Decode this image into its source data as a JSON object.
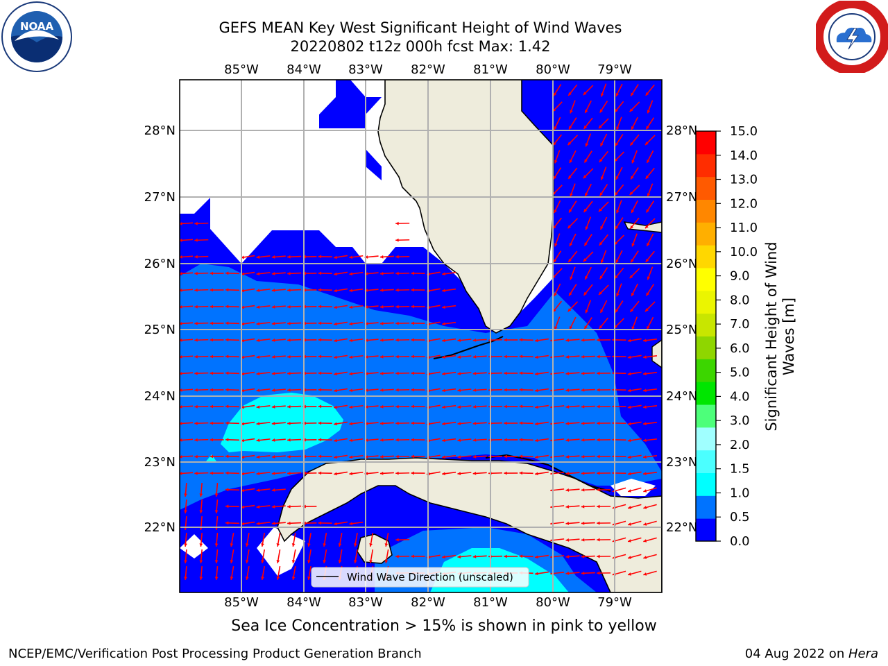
{
  "title": {
    "line1": "GEFS MEAN Key West Significant Height of Wind Waves",
    "line2": "20220802 t12z 000h fcst   Max: 1.42"
  },
  "map": {
    "lon_ticks": [
      "85°W",
      "84°W",
      "83°W",
      "82°W",
      "81°W",
      "80°W",
      "79°W"
    ],
    "lat_ticks": [
      "28°N",
      "27°N",
      "26°N",
      "25°N",
      "24°N",
      "23°N",
      "22°N"
    ],
    "legend_label": "Wind Wave Direction (unscaled)",
    "land_color": "#eeecdc",
    "arrow_color": "#ff0000"
  },
  "colorbar": {
    "label": "Significant Height of Wind Waves [m]",
    "ticks": [
      "0.0",
      "0.5",
      "1.0",
      "1.5",
      "2.0",
      "3.0",
      "4.0",
      "5.0",
      "6.0",
      "7.0",
      "8.0",
      "9.0",
      "10.0",
      "11.0",
      "12.0",
      "13.0",
      "14.0",
      "15.0"
    ],
    "colors": [
      "#0000ff",
      "#0073ff",
      "#00ffff",
      "#4bffff",
      "#a0ffff",
      "#4dff7a",
      "#00e600",
      "#3cd600",
      "#8fd600",
      "#c8e600",
      "#ebf500",
      "#ffff00",
      "#ffd700",
      "#ffaf00",
      "#ff8700",
      "#ff5a00",
      "#ff2d00",
      "#ff0000"
    ]
  },
  "footer": {
    "subtitle": "Sea Ice Concentration > 15% is shown in pink to yellow",
    "left": "NCEP/EMC/Verification Post Processing Product Generation Branch",
    "right_prefix": "04 Aug 2022 on ",
    "right_host": "Hera"
  }
}
